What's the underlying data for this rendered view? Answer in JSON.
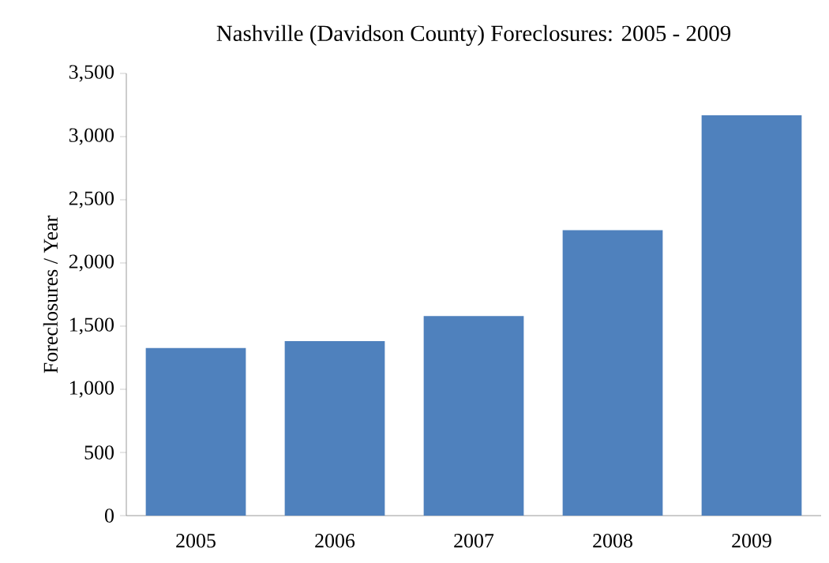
{
  "chart_data": {
    "type": "bar",
    "title": "Nashville (Davidson County) Foreclosures: 2005 - 2009",
    "ylabel": "Foreclosures / Year",
    "categories": [
      "2005",
      "2006",
      "2007",
      "2008",
      "2009"
    ],
    "values": [
      1326,
      1381,
      1579,
      2260,
      3168
    ],
    "color": "#4f81bd",
    "ylim": [
      0,
      3500
    ],
    "yticks": [
      {
        "value": 0,
        "label": "0"
      },
      {
        "value": 500,
        "label": "500"
      },
      {
        "value": 1000,
        "label": "1,000"
      },
      {
        "value": 1500,
        "label": "1,500"
      },
      {
        "value": 2000,
        "label": "2,000"
      },
      {
        "value": 2500,
        "label": "2,500"
      },
      {
        "value": 3000,
        "label": "3,000"
      },
      {
        "value": 3500,
        "label": "3,500"
      }
    ],
    "grid": false
  }
}
